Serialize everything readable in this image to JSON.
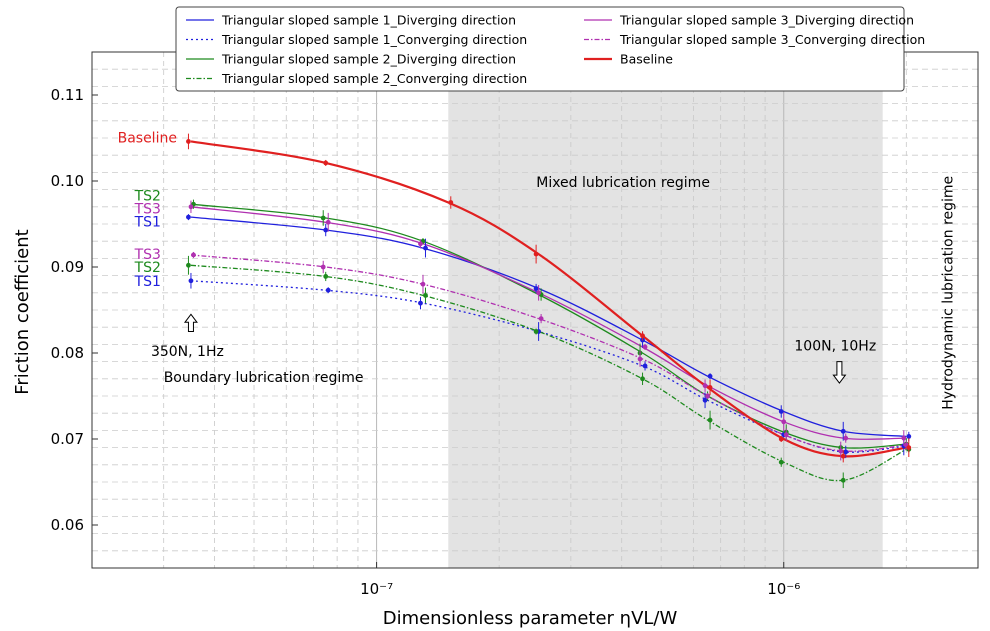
{
  "chart_data": {
    "type": "line",
    "title": "",
    "xlabel": "Dimensionless parameter ηVL/W",
    "ylabel": "Friction coefficient",
    "x_scale": "log",
    "xlim": [
      2e-08,
      3e-06
    ],
    "ylim": [
      0.055,
      0.115
    ],
    "x_ticks": [
      {
        "value": 1e-07,
        "label": "10⁻⁷"
      },
      {
        "value": 1e-06,
        "label": "10⁻⁶"
      }
    ],
    "y_ticks": [
      {
        "value": 0.06,
        "label": "0.06"
      },
      {
        "value": 0.07,
        "label": "0.07"
      },
      {
        "value": 0.08,
        "label": "0.08"
      },
      {
        "value": 0.09,
        "label": "0.09"
      },
      {
        "value": 0.1,
        "label": "0.10"
      },
      {
        "value": 0.11,
        "label": "0.11"
      }
    ],
    "grid": true,
    "legend_position": "top-center",
    "shaded_region": {
      "x0": 1.5e-07,
      "x1": 1.75e-06,
      "color": "#e3e3e3"
    },
    "series": [
      {
        "name": "Triangular sloped sample 1_Diverging direction",
        "color": "#2020dd",
        "dash": "solid",
        "width": 1.3,
        "x": [
          3.5e-08,
          7.5e-08,
          1.3e-07,
          2.5e-07,
          4.5e-07,
          6.5e-07,
          1e-06,
          1.4e-06,
          2e-06
        ],
        "y": [
          0.0958,
          0.0943,
          0.0922,
          0.0875,
          0.0815,
          0.0773,
          0.0732,
          0.0709,
          0.0703
        ]
      },
      {
        "name": "Triangular sloped sample 1_Converging direction",
        "color": "#2020dd",
        "dash": "dotted",
        "width": 1.3,
        "x": [
          3.5e-08,
          7.5e-08,
          1.3e-07,
          2.5e-07,
          4.5e-07,
          6.5e-07,
          1e-06,
          1.4e-06,
          2e-06
        ],
        "y": [
          0.0884,
          0.0873,
          0.0858,
          0.0825,
          0.0785,
          0.0745,
          0.0705,
          0.0685,
          0.0692
        ]
      },
      {
        "name": "Triangular sloped sample 2_Diverging direction",
        "color": "#1e8a1e",
        "dash": "solid",
        "width": 1.3,
        "x": [
          3.5e-08,
          7.5e-08,
          1.3e-07,
          2.5e-07,
          4.5e-07,
          6.5e-07,
          1e-06,
          1.4e-06,
          2e-06
        ],
        "y": [
          0.0973,
          0.0957,
          0.093,
          0.0868,
          0.08,
          0.075,
          0.0708,
          0.069,
          0.0694
        ]
      },
      {
        "name": "Triangular sloped sample 2_Converging direction",
        "color": "#1e8a1e",
        "dash": "dashdot",
        "width": 1.3,
        "x": [
          3.5e-08,
          7.5e-08,
          1.3e-07,
          2.5e-07,
          4.5e-07,
          6.5e-07,
          1e-06,
          1.4e-06,
          2e-06
        ],
        "y": [
          0.0902,
          0.0889,
          0.0867,
          0.0825,
          0.077,
          0.0722,
          0.0673,
          0.0652,
          0.0688
        ]
      },
      {
        "name": "Triangular sloped sample 3_Diverging direction",
        "color": "#b030b0",
        "dash": "solid",
        "width": 1.3,
        "x": [
          3.5e-08,
          7.5e-08,
          1.3e-07,
          2.5e-07,
          4.5e-07,
          6.5e-07,
          1e-06,
          1.4e-06,
          2e-06
        ],
        "y": [
          0.097,
          0.0952,
          0.0927,
          0.087,
          0.0807,
          0.0762,
          0.072,
          0.0701,
          0.0701
        ]
      },
      {
        "name": "Triangular sloped sample 3_Converging direction",
        "color": "#b030b0",
        "dash": "dashdot",
        "width": 1.3,
        "x": [
          3.5e-08,
          7.5e-08,
          1.3e-07,
          2.5e-07,
          4.5e-07,
          6.5e-07,
          1e-06,
          1.4e-06,
          2e-06
        ],
        "y": [
          0.0914,
          0.09,
          0.088,
          0.084,
          0.0793,
          0.075,
          0.0705,
          0.0686,
          0.0693
        ]
      },
      {
        "name": "Baseline",
        "color": "#e02020",
        "dash": "solid",
        "width": 2.2,
        "x": [
          3.5e-08,
          7.5e-08,
          1.5e-07,
          2.5e-07,
          4.5e-07,
          6.5e-07,
          1e-06,
          1.4e-06,
          2e-06
        ],
        "y": [
          0.1046,
          0.1021,
          0.0975,
          0.0915,
          0.082,
          0.076,
          0.07,
          0.068,
          0.069
        ]
      }
    ],
    "annotations": [
      {
        "text": "Baseline",
        "x": 3.5e-08,
        "y": 0.1046,
        "color": "#e02020"
      },
      {
        "text": "TS2",
        "x": 3.5e-08,
        "y": 0.0983,
        "color": "#1e8a1e"
      },
      {
        "text": "TS3",
        "x": 3.5e-08,
        "y": 0.0968,
        "color": "#b030b0"
      },
      {
        "text": "TS1",
        "x": 3.5e-08,
        "y": 0.0953,
        "color": "#2020dd"
      },
      {
        "text": "TS3",
        "x": 3.5e-08,
        "y": 0.0915,
        "color": "#b030b0"
      },
      {
        "text": "TS2",
        "x": 3.5e-08,
        "y": 0.09,
        "color": "#1e8a1e"
      },
      {
        "text": "TS1",
        "x": 3.5e-08,
        "y": 0.0884,
        "color": "#2020dd"
      },
      {
        "text": "350N, 1Hz",
        "x": 3.5e-08,
        "y": 0.08,
        "color": "#000000"
      },
      {
        "text": "100N, 10Hz",
        "x": 1.37e-06,
        "y": 0.0797,
        "color": "#000000"
      },
      {
        "text": "Boundary lubrication regime",
        "x": 3e-08,
        "y": 0.0766,
        "color": "#000000"
      },
      {
        "text": "Mixed lubrication regime",
        "x": 3.6e-07,
        "y": 0.0993,
        "color": "#000000"
      },
      {
        "text": "Hydrodynamic lubrication regime",
        "x": 2.6e-06,
        "y": 0.087,
        "color": "#000000",
        "rotation": -90
      }
    ],
    "arrows": [
      {
        "name": "350N-1Hz",
        "x": 3.5e-08,
        "y_from": 0.0825,
        "y_to": 0.0845,
        "direction": "up"
      },
      {
        "name": "100N-10Hz",
        "x": 1.37e-06,
        "y_from": 0.079,
        "y_to": 0.0765,
        "direction": "down"
      }
    ]
  }
}
